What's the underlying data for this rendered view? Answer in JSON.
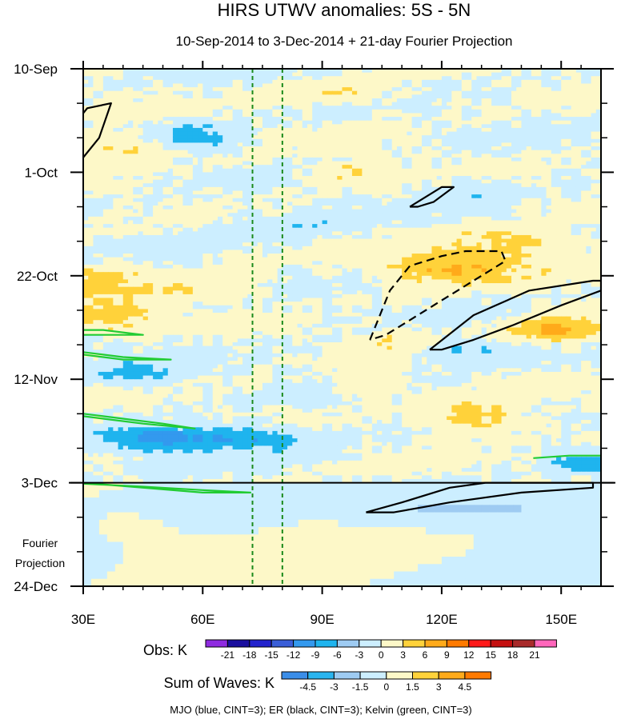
{
  "chart_data": {
    "type": "heatmap",
    "title": "HIRS UTWV anomalies: 5S - 5N",
    "subtitle": "10-Sep-2014 to 3-Dec-2014 + 21-day Fourier Projection",
    "x_axis": {
      "label": "",
      "range": [
        30,
        160
      ],
      "ticks": [
        30,
        60,
        90,
        120,
        150
      ],
      "tick_labels": [
        "30E",
        "60E",
        "90E",
        "120E",
        "150E"
      ]
    },
    "y_axis": {
      "label": "",
      "range_days": [
        0,
        105
      ],
      "ticks_days": [
        0,
        21,
        42,
        63,
        84,
        105
      ],
      "tick_labels": [
        "10-Sep",
        "1-Oct",
        "22-Oct",
        "12-Nov",
        "3-Dec",
        "24-Dec"
      ],
      "direction": "time increases downward"
    },
    "projection_start_day": 84,
    "projection_label": [
      "Fourier",
      "Projection"
    ],
    "reference_longitudes": [
      72.5,
      80
    ],
    "obs_colorbar": {
      "label": "Obs: K",
      "levels": [
        -21,
        -18,
        -15,
        -12,
        -9,
        -6,
        -3,
        0,
        3,
        6,
        9,
        12,
        15,
        18,
        21
      ],
      "colors": [
        "#8f2be0",
        "#1a0f9e",
        "#2222cc",
        "#3a5ed8",
        "#3399ee",
        "#1fb4ee",
        "#9ecbf2",
        "#cceeff",
        "#fdf8c8",
        "#ffd23a",
        "#ffaa1a",
        "#ff7a00",
        "#ff1a1a",
        "#c41010",
        "#a82a2a",
        "#ff66bb"
      ]
    },
    "waves_colorbar": {
      "label": "Sum of Waves: K",
      "levels": [
        -4.5,
        -3,
        -1.5,
        0,
        1.5,
        3,
        4.5
      ],
      "colors": [
        "#3a8de8",
        "#2ab4ee",
        "#9ecbf2",
        "#cceeff",
        "#fdf8c8",
        "#ffd23a",
        "#ffaa1a",
        "#ff7a00"
      ]
    },
    "contours": [
      {
        "name": "ER positive (solid)",
        "color": "#000000",
        "style": "solid",
        "points": [
          [
            30,
            18
          ],
          [
            34,
            14
          ],
          [
            37,
            7
          ],
          [
            31,
            8
          ],
          [
            30,
            9
          ]
        ]
      },
      {
        "name": "ER positive (solid)",
        "color": "#000000",
        "style": "solid",
        "points": [
          [
            112,
            28
          ],
          [
            120,
            24
          ],
          [
            123,
            24
          ],
          [
            118,
            27
          ],
          [
            114,
            28
          ],
          [
            112,
            28
          ]
        ]
      },
      {
        "name": "ER negative (dashed)",
        "color": "#000000",
        "style": "dashed",
        "points": [
          [
            102,
            55
          ],
          [
            107,
            45
          ],
          [
            112,
            40
          ],
          [
            120,
            38
          ],
          [
            126,
            37
          ],
          [
            135,
            37
          ],
          [
            136,
            39
          ],
          [
            130,
            42
          ],
          [
            120,
            47
          ],
          [
            112,
            51
          ],
          [
            106,
            54
          ],
          [
            102,
            55
          ]
        ]
      },
      {
        "name": "ER positive (solid)",
        "color": "#000000",
        "style": "solid",
        "points": [
          [
            117,
            57
          ],
          [
            128,
            50
          ],
          [
            142,
            45
          ],
          [
            158,
            43
          ],
          [
            160,
            43
          ],
          [
            160,
            45
          ],
          [
            150,
            48
          ],
          [
            138,
            52
          ],
          [
            128,
            55
          ],
          [
            120,
            57
          ],
          [
            117,
            57
          ]
        ]
      },
      {
        "name": "ER projection (solid)",
        "color": "#000000",
        "style": "solid",
        "points": [
          [
            101,
            90
          ],
          [
            110,
            88
          ],
          [
            122,
            85
          ],
          [
            131,
            84
          ],
          [
            143,
            84
          ],
          [
            158,
            84
          ],
          [
            158,
            85
          ],
          [
            140,
            86
          ],
          [
            122,
            88
          ],
          [
            108,
            90
          ],
          [
            103,
            90
          ],
          [
            101,
            90
          ]
        ]
      },
      {
        "name": "Kelvin (green)",
        "color": "#22cc33",
        "style": "solid",
        "points": [
          [
            30,
            53
          ],
          [
            35,
            53
          ],
          [
            45,
            54
          ],
          [
            43,
            54
          ],
          [
            35,
            54
          ],
          [
            30,
            54
          ]
        ]
      },
      {
        "name": "Kelvin (green)",
        "color": "#22cc33",
        "style": "solid",
        "points": [
          [
            30,
            58
          ],
          [
            40,
            59
          ],
          [
            52,
            59
          ],
          [
            40,
            58.5
          ],
          [
            30,
            57.5
          ]
        ]
      },
      {
        "name": "Kelvin (green)",
        "color": "#22cc33",
        "style": "solid",
        "points": [
          [
            30,
            70
          ],
          [
            40,
            71
          ],
          [
            50,
            72
          ],
          [
            58,
            73
          ],
          [
            45,
            72
          ],
          [
            35,
            71
          ],
          [
            30,
            70.5
          ]
        ]
      },
      {
        "name": "Kelvin (green)",
        "color": "#22cc33",
        "style": "solid",
        "points": [
          [
            30,
            84
          ],
          [
            45,
            85
          ],
          [
            60,
            86
          ],
          [
            72,
            86
          ],
          [
            60,
            85.5
          ],
          [
            45,
            84.8
          ],
          [
            30,
            84.2
          ]
        ]
      },
      {
        "name": "Kelvin (green)",
        "color": "#22cc33",
        "style": "solid",
        "points": [
          [
            143,
            79
          ],
          [
            152,
            78.5
          ],
          [
            160,
            78.5
          ]
        ]
      }
    ],
    "footer": "MJO (blue, CINT=3); ER (black, CINT=3); Kelvin (green, CINT=3)"
  }
}
